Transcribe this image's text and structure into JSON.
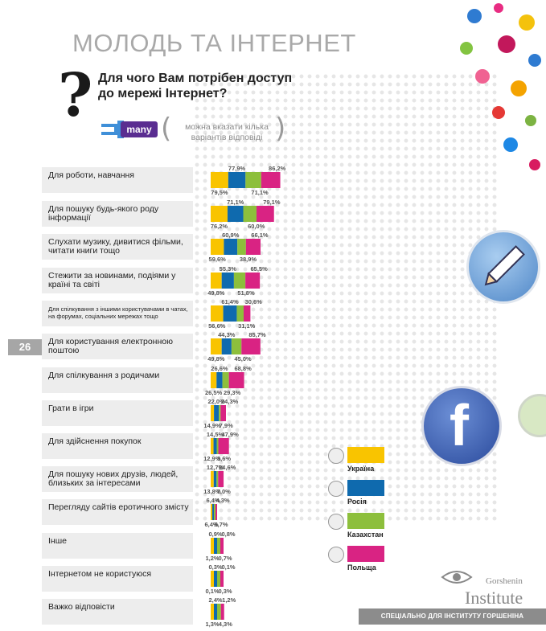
{
  "header": {
    "title": "МОЛОДЬ ТА ІНТЕРНЕТ",
    "question": "Для чого Вам потрібен доступ до мережі Інтернет?",
    "badge": "many",
    "note": "можна вказати кілька варіантів відповіді"
  },
  "page_number": "26",
  "footer": "СПЕЦІАЛЬНО ДЛЯ ІНСТИТУТУ ГОРШЕНІНА",
  "logo": {
    "name": "Gorshenin",
    "institute": "Institute"
  },
  "icons": {
    "pencil": "pencil-icon",
    "facebook": "facebook-icon",
    "question_mark": "question-mark-icon",
    "hand": "pointing-hand-icon"
  },
  "colors": {
    "Україна": "#f9c400",
    "Росія": "#0f6aae",
    "Казахстан": "#8dbf3c",
    "Польща": "#d92383"
  },
  "legend": [
    {
      "name": "Україна",
      "color": "#f9c400"
    },
    {
      "name": "Росія",
      "color": "#0f6aae"
    },
    {
      "name": "Казахстан",
      "color": "#8dbf3c"
    },
    {
      "name": "Польща",
      "color": "#d92383"
    }
  ],
  "chart_data": {
    "type": "bar",
    "stacked": true,
    "orientation": "horizontal",
    "title": "Для чого Вам потрібен доступ до мережі Інтернет?",
    "unit": "%",
    "legend_position": "right",
    "categories": [
      "Для роботи, навчання",
      "Для пошуку будь-якого роду інформації",
      "Слухати музику, дивитися фільми, читати книги тощо",
      "Стежити за новинами, подіями у країні та світі",
      "Для спілкування з іншими користувачами в чатах, на форумах, соціальних мережах тощо",
      "Для користування електронною поштою",
      "Для спілкування з родичами",
      "Грати в ігри",
      "Для здійснення покупок",
      "Для пошуку нових друзів, людей, близьких за інтересами",
      "Перегляду сайтів еротичного змісту",
      "Інше",
      "Інтернетом не користуюся",
      "Важко відповісти"
    ],
    "series": [
      {
        "name": "Україна",
        "values": [
          79.5,
          76.2,
          59.6,
          49.8,
          56.6,
          49.8,
          26.5,
          14.9,
          12.9,
          13.8,
          6.4,
          1.2,
          0.1,
          1.3
        ]
      },
      {
        "name": "Росія",
        "values": [
          77.9,
          71.1,
          60.9,
          55.3,
          61.4,
          44.3,
          26.6,
          22.0,
          14.5,
          12.7,
          6.4,
          0.9,
          0.3,
          2.4
        ]
      },
      {
        "name": "Казахстан",
        "values": [
          71.1,
          60.0,
          38.9,
          51.8,
          31.1,
          45.0,
          29.3,
          7.9,
          3.6,
          7.0,
          6.7,
          0.7,
          0.3,
          4.3
        ]
      },
      {
        "name": "Польща",
        "values": [
          86.2,
          79.1,
          66.1,
          65.5,
          30.6,
          85.7,
          68.8,
          24.3,
          47.9,
          24.6,
          4.3,
          0.8,
          0.1,
          1.2
        ]
      }
    ],
    "labels": [
      [
        "79,5",
        "77,9",
        "71,1",
        "86,2"
      ],
      [
        "76,2",
        "71,1",
        "60,0",
        "79,1"
      ],
      [
        "59,6",
        "60,9",
        "38,9",
        "66,1"
      ],
      [
        "49,8",
        "55,3",
        "51,8",
        "65,5"
      ],
      [
        "56,6",
        "61,4",
        "31,1",
        "30,6"
      ],
      [
        "49,8",
        "44,3",
        "45,0",
        "85,7"
      ],
      [
        "26,5",
        "26,6",
        "29,3",
        "68,8"
      ],
      [
        "14,9",
        "22,0",
        "7,9",
        "24,3"
      ],
      [
        "12,9",
        "14,5",
        "3,6",
        "47,9"
      ],
      [
        "13,8",
        "12,7",
        "7,0",
        "24,6"
      ],
      [
        "6,4",
        "6,4",
        "6,7",
        "4,3"
      ],
      [
        "1,2",
        "0,9",
        "0,7",
        "0,8"
      ],
      [
        "0,1",
        "0,3",
        "0,3",
        "0,1"
      ],
      [
        "1,3",
        "2,4",
        "4,3",
        "1,2"
      ]
    ],
    "label_percent_sign": "%"
  }
}
